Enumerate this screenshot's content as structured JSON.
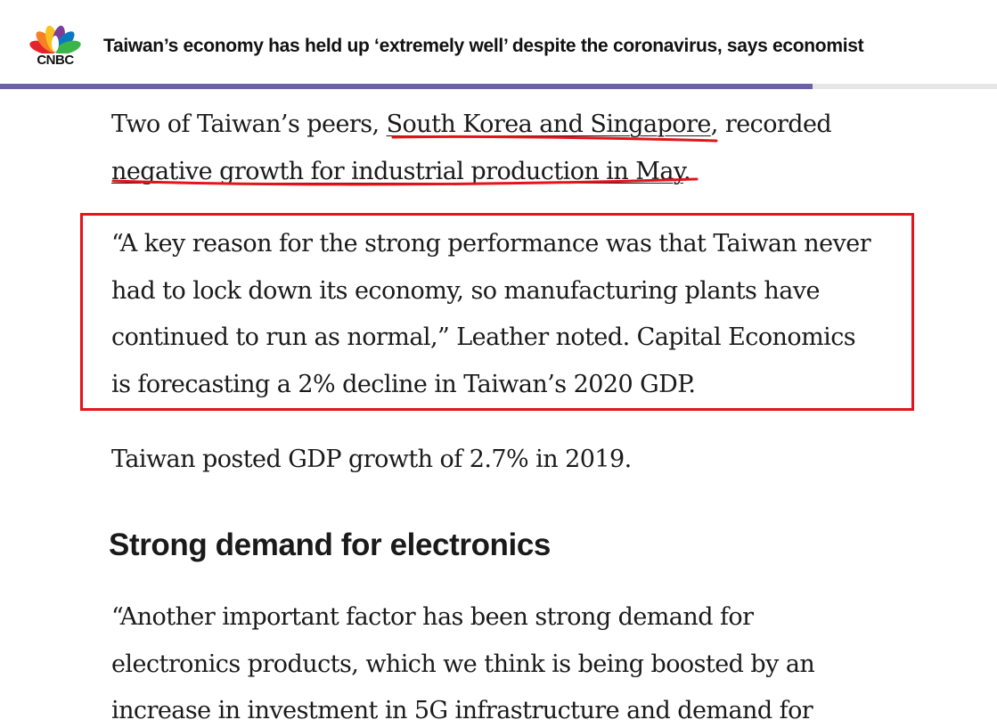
{
  "header": {
    "logo_icon": "cnbc-peacock-icon",
    "logo_text": "CNBC",
    "title": "Taiwan’s economy has held up ‘extremely well’ despite the coronavirus, says economist",
    "reading_progress": 0.815
  },
  "article": {
    "p1": {
      "before": "Two of Taiwan’s peers, ",
      "link1": "South Korea and Singapore",
      "middle": ", recorded",
      "link2": "negative growth for industrial production in May",
      "after": "."
    },
    "p2": {
      "lines": [
        "“A key reason for the strong performance was that Taiwan never",
        "had to lock down its economy, so manufacturing plants have",
        "continued to run as normal,” Leather noted. Capital Economics",
        "is forecasting a 2% decline in Taiwan’s 2020 GDP."
      ]
    },
    "p3": "Taiwan posted GDP growth of 2.7% in 2019.",
    "heading": "Strong demand for electronics",
    "p4": {
      "lines": [
        "“Another important factor has been strong demand for",
        "electronics products, which we think is being boosted by an",
        "increase in investment in 5G infrastructure and demand for"
      ]
    }
  },
  "annotations": {
    "color": "#e3141a"
  }
}
